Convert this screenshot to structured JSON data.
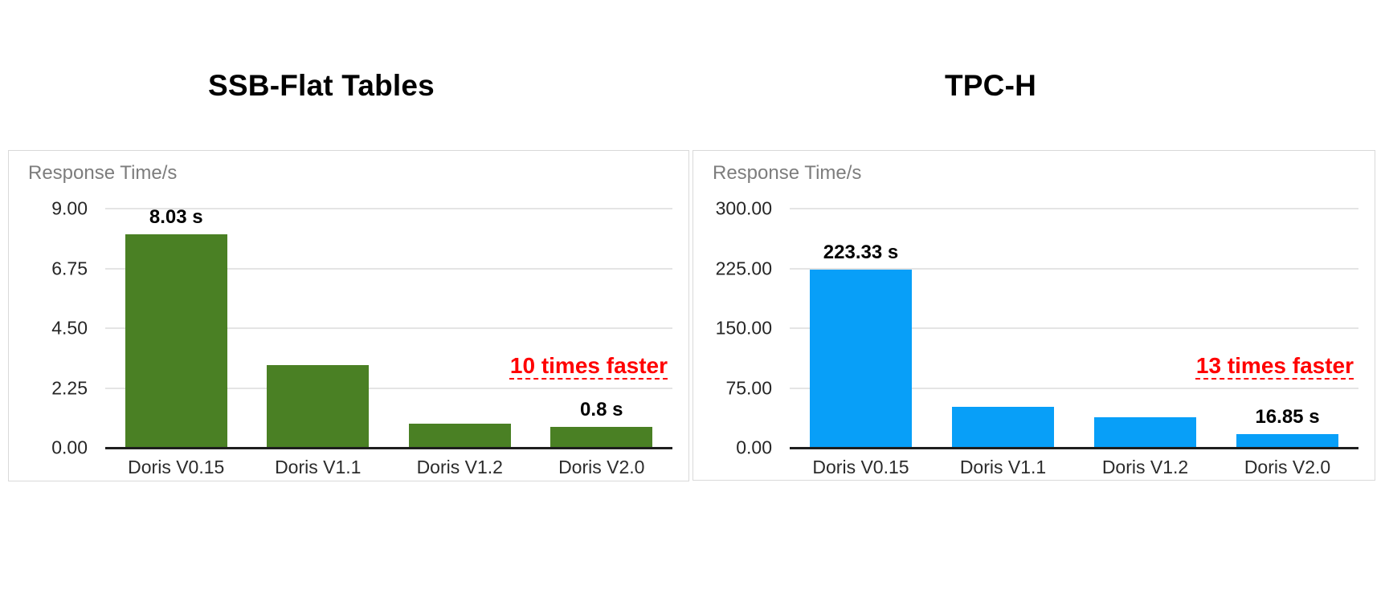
{
  "page": {
    "background": "#ffffff"
  },
  "chart_data": [
    {
      "type": "bar",
      "title": "SSB-Flat Tables",
      "ylabel": "Response Time/s",
      "xlabel": "",
      "categories": [
        "Doris V0.15",
        "Doris V1.1",
        "Doris V1.2",
        "Doris V2.0"
      ],
      "values": [
        8.03,
        3.1,
        0.9,
        0.8
      ],
      "value_labels": [
        "8.03 s",
        null,
        null,
        "0.8 s"
      ],
      "annotation": "10 times faster",
      "annotation_color": "#ff0000",
      "annotation_underline": true,
      "y_tick_labels": [
        "9.00",
        "6.75",
        "4.50",
        "2.25",
        "0.00"
      ],
      "ylim": [
        0,
        9
      ],
      "grid": true,
      "legend": "none",
      "bar_color": "#4a8024"
    },
    {
      "type": "bar",
      "title": "TPC-H",
      "ylabel": "Response Time/s",
      "xlabel": "",
      "categories": [
        "Doris V0.15",
        "Doris V1.1",
        "Doris V1.2",
        "Doris V2.0"
      ],
      "values": [
        223.33,
        51,
        38,
        16.85
      ],
      "value_labels": [
        "223.33 s",
        null,
        null,
        "16.85 s"
      ],
      "annotation": "13 times faster",
      "annotation_color": "#ff0000",
      "annotation_underline": true,
      "y_tick_labels": [
        "300.00",
        "225.00",
        "150.00",
        "75.00",
        "0.00"
      ],
      "ylim": [
        0,
        300
      ],
      "grid": true,
      "legend": "none",
      "bar_color": "#089ff8"
    }
  ]
}
